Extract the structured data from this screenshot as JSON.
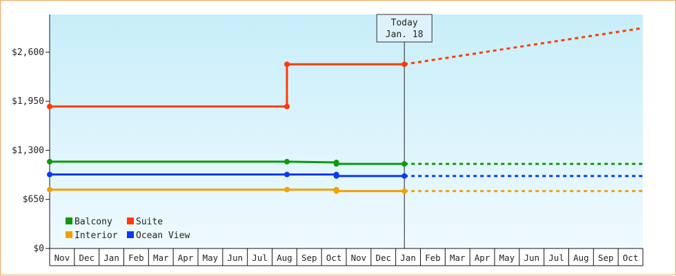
{
  "chart_data": {
    "type": "line",
    "y_axis": {
      "min": 0,
      "max": 3100,
      "ticks": [
        0,
        650,
        1300,
        1950,
        2600
      ],
      "tick_labels": [
        "$0",
        "$650",
        "$1,300",
        "$1,950",
        "$2,600"
      ]
    },
    "x_axis": {
      "months": [
        "Nov",
        "Dec",
        "Jan",
        "Feb",
        "Mar",
        "Apr",
        "May",
        "Jun",
        "Jul",
        "Aug",
        "Sep",
        "Oct",
        "Nov",
        "Dec",
        "Jan",
        "Feb",
        "Mar",
        "Apr",
        "May",
        "Jun",
        "Jul",
        "Aug",
        "Sep",
        "Oct"
      ]
    },
    "today": {
      "label": "Today",
      "date": "Jan. 18",
      "x": 14.35
    },
    "series": [
      {
        "name": "Suite",
        "color": "#ff3a00",
        "points": [
          [
            0,
            1880
          ],
          [
            9.6,
            1880
          ],
          [
            9.6,
            2440
          ],
          [
            14.35,
            2440
          ]
        ],
        "markers": [
          [
            0,
            1880
          ],
          [
            9.6,
            1880
          ],
          [
            9.6,
            2440
          ],
          [
            14.35,
            2440
          ]
        ],
        "forecast": [
          [
            14.35,
            2440
          ],
          [
            24,
            2920
          ]
        ]
      },
      {
        "name": "Balcony",
        "color": "#0a9a0a",
        "points": [
          [
            0,
            1150
          ],
          [
            9.6,
            1150
          ],
          [
            11.6,
            1140
          ],
          [
            11.6,
            1120
          ],
          [
            14.35,
            1120
          ]
        ],
        "markers": [
          [
            0,
            1150
          ],
          [
            9.6,
            1150
          ],
          [
            11.6,
            1140
          ],
          [
            11.6,
            1120
          ],
          [
            14.35,
            1120
          ]
        ],
        "forecast": [
          [
            14.35,
            1120
          ],
          [
            24,
            1120
          ]
        ]
      },
      {
        "name": "Ocean View",
        "color": "#0a3af0",
        "points": [
          [
            0,
            980
          ],
          [
            9.6,
            980
          ],
          [
            11.6,
            980
          ],
          [
            11.6,
            960
          ],
          [
            14.35,
            960
          ]
        ],
        "markers": [
          [
            0,
            980
          ],
          [
            9.6,
            980
          ],
          [
            11.6,
            980
          ],
          [
            11.6,
            960
          ],
          [
            14.35,
            960
          ]
        ],
        "forecast": [
          [
            14.35,
            960
          ],
          [
            24,
            960
          ]
        ]
      },
      {
        "name": "Interior",
        "color": "#f5a000",
        "points": [
          [
            0,
            780
          ],
          [
            9.6,
            780
          ],
          [
            11.6,
            780
          ],
          [
            11.6,
            760
          ],
          [
            14.35,
            760
          ]
        ],
        "markers": [
          [
            0,
            780
          ],
          [
            9.6,
            780
          ],
          [
            11.6,
            780
          ],
          [
            11.6,
            760
          ],
          [
            14.35,
            760
          ]
        ],
        "forecast": [
          [
            14.35,
            760
          ],
          [
            24,
            760
          ]
        ]
      }
    ],
    "legend": {
      "placement": "bottom-left",
      "entries": [
        {
          "name": "Balcony",
          "color": "#0a9a0a"
        },
        {
          "name": "Suite",
          "color": "#ff3a00"
        },
        {
          "name": "Interior",
          "color": "#f5a000"
        },
        {
          "name": "Ocean View",
          "color": "#0a3af0"
        }
      ]
    },
    "background": {
      "top": "#c8eef9",
      "bottom": "#effaff"
    },
    "grid": false
  }
}
